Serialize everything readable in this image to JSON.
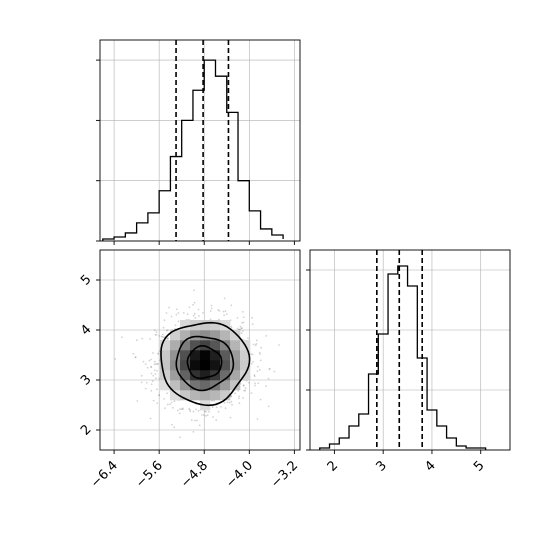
{
  "chart_data": [
    {
      "type": "histogram",
      "panel": "top-left",
      "title": "",
      "xlabel": "",
      "ylabel": "",
      "xlim": [
        -6.65,
        -3.1
      ],
      "ylim": [
        0,
        1.0
      ],
      "grid": true,
      "step": true,
      "bin_edges": [
        -6.6,
        -6.4,
        -6.2,
        -6.0,
        -5.8,
        -5.6,
        -5.4,
        -5.2,
        -5.0,
        -4.8,
        -4.6,
        -4.4,
        -4.2,
        -4.0,
        -3.8,
        -3.6,
        -3.4
      ],
      "values": [
        0.01,
        0.02,
        0.04,
        0.09,
        0.14,
        0.25,
        0.42,
        0.6,
        0.75,
        0.9,
        0.82,
        0.64,
        0.3,
        0.15,
        0.06,
        0.03,
        0.01
      ],
      "quantile_lines": [
        -5.3,
        -4.82,
        -4.37
      ],
      "x_tick_values": [
        -6.4,
        -5.6,
        -4.8,
        -4.0,
        -3.2
      ],
      "y_tick_values": [
        0.0,
        0.3,
        0.6,
        0.9
      ]
    },
    {
      "type": "histogram",
      "panel": "bottom-right",
      "title": "",
      "xlabel": "",
      "ylabel": "",
      "xlim": [
        1.5,
        5.6
      ],
      "ylim": [
        0,
        1.0
      ],
      "grid": true,
      "step": true,
      "bin_edges": [
        1.7,
        1.9,
        2.1,
        2.3,
        2.5,
        2.7,
        2.9,
        3.1,
        3.3,
        3.5,
        3.7,
        3.9,
        4.1,
        4.3,
        4.5,
        4.7,
        4.9,
        5.1
      ],
      "values": [
        0.01,
        0.03,
        0.06,
        0.12,
        0.18,
        0.38,
        0.58,
        0.88,
        0.92,
        0.82,
        0.46,
        0.2,
        0.12,
        0.06,
        0.02,
        0.01,
        0.01
      ],
      "quantile_lines": [
        2.87,
        3.33,
        3.8
      ],
      "x_tick_labels": [
        "2",
        "3",
        "4",
        "5"
      ],
      "x_tick_values": [
        2,
        3,
        4,
        5
      ],
      "y_tick_values": [
        0.0,
        0.3,
        0.6,
        0.9
      ]
    },
    {
      "type": "heatmap",
      "panel": "bottom-left",
      "title": "",
      "xlabel": "",
      "ylabel": "",
      "xlim": [
        -6.65,
        -3.1
      ],
      "ylim": [
        1.6,
        5.6
      ],
      "grid": true,
      "center": [
        -4.8,
        3.35
      ],
      "spread": [
        0.4,
        0.42
      ],
      "contour_levels": [
        0.15,
        0.45,
        0.75
      ],
      "x_tick_labels": [
        "−6.4",
        "−5.6",
        "−4.8",
        "−4.0",
        "−3.2"
      ],
      "x_tick_values": [
        -6.4,
        -5.6,
        -4.8,
        -4.0,
        -3.2
      ],
      "y_tick_labels": [
        "2",
        "3",
        "4",
        "5"
      ],
      "y_tick_values": [
        2,
        3,
        4,
        5
      ],
      "colors": {
        "hist": "#000000",
        "points": "#808080",
        "grid": "#b0b0b0"
      }
    }
  ]
}
